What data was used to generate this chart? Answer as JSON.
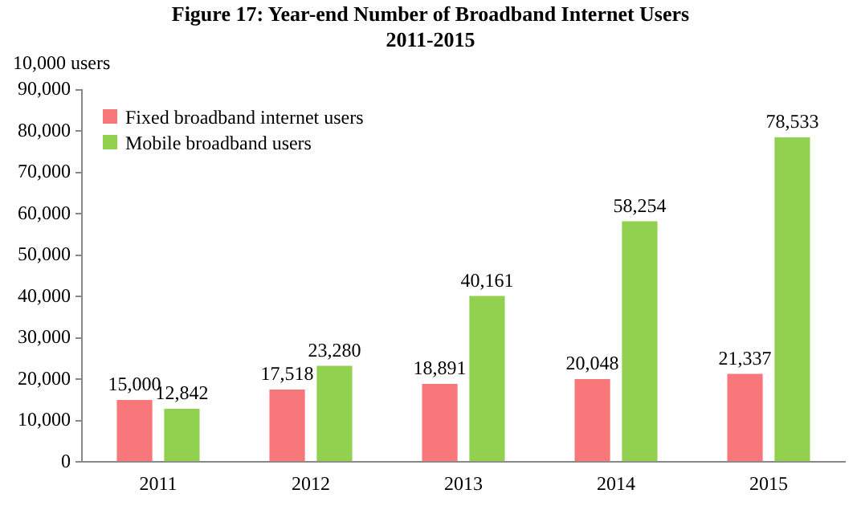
{
  "chart_data": {
    "type": "bar",
    "title": "Figure 17: Year-end Number of Broadband Internet Users\n2011-2015",
    "ylabel": "10,000 users",
    "categories": [
      "2011",
      "2012",
      "2013",
      "2014",
      "2015"
    ],
    "series": [
      {
        "name": "Fixed broadband internet users",
        "color": "#f8777a",
        "values": [
          15000,
          17518,
          18891,
          20048,
          21337
        ],
        "value_labels": [
          "15,000",
          "17,518",
          "18,891",
          "20,048",
          "21,337"
        ]
      },
      {
        "name": "Mobile broadband users",
        "color": "#92d050",
        "values": [
          12842,
          23280,
          40161,
          58254,
          78533
        ],
        "value_labels": [
          "12,842",
          "23,280",
          "40,161",
          "58,254",
          "78,533"
        ]
      }
    ],
    "ylim": [
      0,
      90000
    ],
    "yticks": [
      0,
      {
        "value": 10000,
        "label": "10,000"
      },
      {
        "value": 20000,
        "label": "20,000"
      },
      {
        "value": 30000,
        "label": "30,000"
      },
      {
        "value": 40000,
        "label": "40,000"
      },
      {
        "value": 50000,
        "label": "50,000"
      },
      {
        "value": 60000,
        "label": "60,000"
      },
      {
        "value": 70000,
        "label": "70,000"
      },
      {
        "value": 80000,
        "label": "80,000"
      },
      {
        "value": 90000,
        "label": "90,000"
      }
    ],
    "grid": false,
    "legend": "top left"
  }
}
